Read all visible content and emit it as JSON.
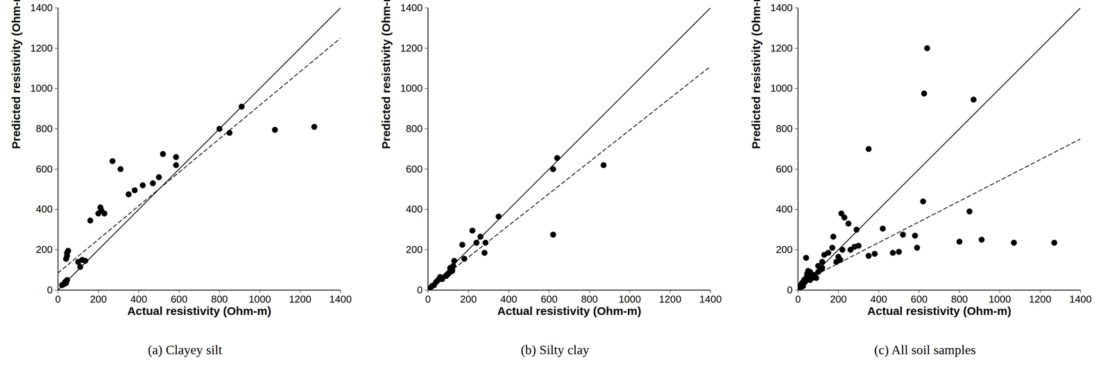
{
  "chart_data": [
    {
      "type": "scatter",
      "title": "(a) Clayey silt",
      "xlabel": "Actual resistivity (Ohm-m)",
      "ylabel": "Predicted resistivity (Ohm-m)",
      "xlim": [
        0,
        1400
      ],
      "ylim": [
        0,
        1400
      ],
      "xticks": [
        0,
        200,
        400,
        600,
        800,
        1000,
        1200,
        1400
      ],
      "yticks": [
        0,
        200,
        400,
        600,
        800,
        1000,
        1200,
        1400
      ],
      "grid": false,
      "series": [
        {
          "type": "scatter",
          "marker": "circle",
          "color": "#000000",
          "x": [
            20,
            30,
            35,
            45,
            40,
            40,
            45,
            45,
            50,
            100,
            110,
            120,
            135,
            160,
            200,
            210,
            215,
            230,
            270,
            310,
            350,
            380,
            420,
            470,
            500,
            520,
            585,
            585,
            800,
            850,
            910,
            1075,
            1270
          ],
          "values": [
            25,
            30,
            40,
            50,
            35,
            155,
            170,
            185,
            195,
            140,
            115,
            150,
            145,
            345,
            380,
            410,
            395,
            380,
            640,
            600,
            475,
            495,
            520,
            530,
            560,
            675,
            660,
            620,
            800,
            780,
            910,
            795,
            810
          ]
        },
        {
          "type": "line",
          "line_style": "solid",
          "color": "#000000",
          "x": [
            0,
            1400
          ],
          "values": [
            0,
            1400
          ]
        },
        {
          "type": "line",
          "line_style": "dashed",
          "color": "#000000",
          "x": [
            0,
            1400
          ],
          "values": [
            85,
            1250
          ]
        }
      ]
    },
    {
      "type": "scatter",
      "title": "(b) Silty clay",
      "xlabel": "Actual resistivity (Ohm-m)",
      "ylabel": "Predicted resistivity (Ohm-m)",
      "xlim": [
        0,
        1400
      ],
      "ylim": [
        0,
        1400
      ],
      "xticks": [
        0,
        200,
        400,
        600,
        800,
        1000,
        1200,
        1400
      ],
      "yticks": [
        0,
        200,
        400,
        600,
        800,
        1000,
        1200,
        1400
      ],
      "grid": false,
      "series": [
        {
          "type": "scatter",
          "marker": "circle",
          "color": "#000000",
          "x": [
            10,
            20,
            30,
            40,
            50,
            60,
            70,
            90,
            100,
            110,
            120,
            110,
            125,
            130,
            120,
            170,
            180,
            220,
            240,
            260,
            280,
            285,
            350,
            620,
            640,
            620,
            870
          ],
          "values": [
            10,
            20,
            25,
            40,
            50,
            65,
            55,
            70,
            80,
            90,
            100,
            110,
            120,
            145,
            95,
            225,
            155,
            295,
            235,
            265,
            185,
            235,
            365,
            600,
            655,
            275,
            620
          ]
        },
        {
          "type": "line",
          "line_style": "solid",
          "color": "#000000",
          "x": [
            0,
            1400
          ],
          "values": [
            0,
            1400
          ]
        },
        {
          "type": "line",
          "line_style": "dashed",
          "color": "#000000",
          "x": [
            0,
            1400
          ],
          "values": [
            5,
            1110
          ]
        }
      ]
    },
    {
      "type": "scatter",
      "title": "(c) All soil samples",
      "xlabel": "Actual resistivity (Ohm-m)",
      "ylabel": "Predicted resistivity (Ohm-m)",
      "xlim": [
        0,
        1400
      ],
      "ylim": [
        0,
        1400
      ],
      "xticks": [
        0,
        200,
        400,
        600,
        800,
        1000,
        1200,
        1400
      ],
      "yticks": [
        0,
        200,
        400,
        600,
        800,
        1000,
        1200,
        1400
      ],
      "grid": false,
      "series": [
        {
          "type": "scatter",
          "marker": "circle",
          "color": "#000000",
          "x": [
            10,
            15,
            20,
            25,
            30,
            35,
            40,
            45,
            50,
            50,
            40,
            60,
            60,
            70,
            80,
            90,
            100,
            110,
            100,
            120,
            120,
            130,
            150,
            170,
            175,
            190,
            200,
            210,
            215,
            230,
            220,
            250,
            260,
            280,
            290,
            300,
            350,
            350,
            380,
            420,
            470,
            500,
            520,
            580,
            590,
            620,
            625,
            640,
            800,
            850,
            870,
            910,
            1070,
            1270
          ],
          "values": [
            10,
            25,
            35,
            20,
            50,
            40,
            60,
            80,
            70,
            95,
            160,
            90,
            50,
            60,
            75,
            60,
            90,
            100,
            120,
            110,
            140,
            175,
            185,
            210,
            265,
            140,
            165,
            150,
            380,
            360,
            200,
            330,
            200,
            215,
            300,
            220,
            700,
            170,
            180,
            305,
            185,
            190,
            275,
            270,
            210,
            440,
            975,
            1200,
            240,
            390,
            945,
            250,
            235,
            235
          ]
        },
        {
          "type": "line",
          "line_style": "solid",
          "color": "#000000",
          "x": [
            0,
            1400
          ],
          "values": [
            0,
            1400
          ]
        },
        {
          "type": "line",
          "line_style": "dashed",
          "color": "#000000",
          "x": [
            0,
            1400
          ],
          "values": [
            30,
            750
          ]
        }
      ]
    }
  ]
}
